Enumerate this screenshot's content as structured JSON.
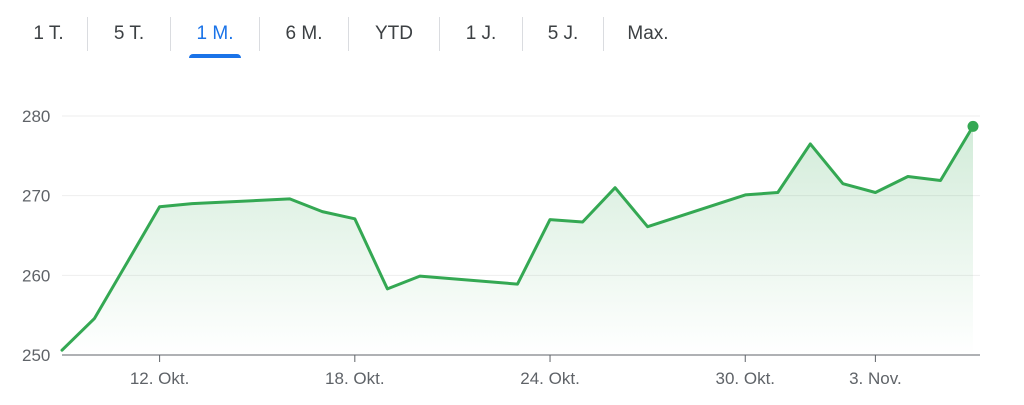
{
  "tabs": [
    {
      "label": "1 T.",
      "active": false
    },
    {
      "label": "5 T.",
      "active": false
    },
    {
      "label": "1 M.",
      "active": true
    },
    {
      "label": "6 M.",
      "active": false
    },
    {
      "label": "YTD",
      "active": false
    },
    {
      "label": "1 J.",
      "active": false
    },
    {
      "label": "5 J.",
      "active": false
    },
    {
      "label": "Max.",
      "active": false
    }
  ],
  "colors": {
    "line": "#34a853",
    "active_tab": "#1a73e8",
    "grid": "#eeeeee",
    "axis": "#5f6368"
  },
  "chart_data": {
    "type": "area",
    "title": "",
    "xlabel": "",
    "ylabel": "",
    "ylim": [
      250,
      280
    ],
    "yticks": [
      250,
      260,
      270,
      280
    ],
    "xlim": [
      "2023-10-09",
      "2023-11-06"
    ],
    "xticks": [
      {
        "date": "2023-10-12",
        "label": "12. Okt."
      },
      {
        "date": "2023-10-18",
        "label": "18. Okt."
      },
      {
        "date": "2023-10-24",
        "label": "24. Okt."
      },
      {
        "date": "2023-10-30",
        "label": "30. Okt."
      },
      {
        "date": "2023-11-03",
        "label": "3. Nov."
      }
    ],
    "grid": true,
    "series": [
      {
        "points": [
          {
            "x": "2023-10-09",
            "y": 250.6
          },
          {
            "x": "2023-10-10",
            "y": 254.6
          },
          {
            "x": "2023-10-11",
            "y": 261.6
          },
          {
            "x": "2023-10-12",
            "y": 268.6
          },
          {
            "x": "2023-10-13",
            "y": 269.0
          },
          {
            "x": "2023-10-16",
            "y": 269.6
          },
          {
            "x": "2023-10-17",
            "y": 268.0
          },
          {
            "x": "2023-10-18",
            "y": 267.1
          },
          {
            "x": "2023-10-19",
            "y": 258.3
          },
          {
            "x": "2023-10-20",
            "y": 259.9
          },
          {
            "x": "2023-10-23",
            "y": 258.9
          },
          {
            "x": "2023-10-24",
            "y": 267.0
          },
          {
            "x": "2023-10-25",
            "y": 266.7
          },
          {
            "x": "2023-10-26",
            "y": 271.0
          },
          {
            "x": "2023-10-27",
            "y": 266.1
          },
          {
            "x": "2023-10-30",
            "y": 270.1
          },
          {
            "x": "2023-10-31",
            "y": 270.4
          },
          {
            "x": "2023-11-01",
            "y": 276.5
          },
          {
            "x": "2023-11-02",
            "y": 271.5
          },
          {
            "x": "2023-11-03",
            "y": 270.4
          },
          {
            "x": "2023-11-04",
            "y": 272.4
          },
          {
            "x": "2023-11-05",
            "y": 271.9
          },
          {
            "x": "2023-11-06",
            "y": 278.7
          }
        ]
      }
    ]
  }
}
